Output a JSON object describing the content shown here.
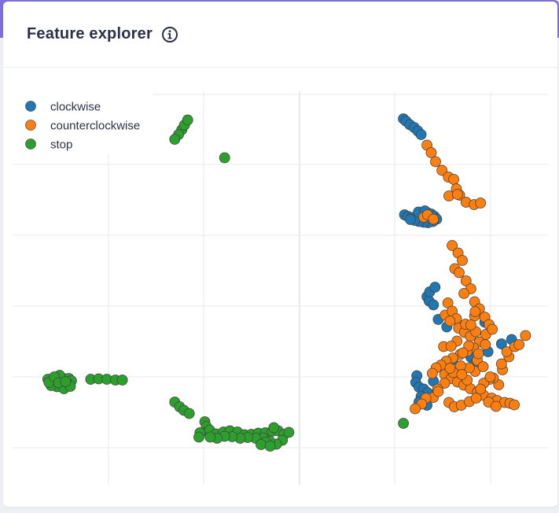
{
  "header": {
    "title": "Feature explorer",
    "info_icon": "info-circle-icon"
  },
  "colors": {
    "clockwise": "#1f77b4",
    "counterclockwise": "#ff7f0e",
    "stop": "#2ca02c",
    "title": "#2c2f48",
    "grid": "#e8e8ee"
  },
  "chart_data": {
    "type": "scatter",
    "title": "",
    "xlabel": "",
    "ylabel": "",
    "xlim": [
      0,
      100
    ],
    "ylim": [
      0,
      100
    ],
    "grid": true,
    "legend_position": "top-left",
    "legend": [
      "clockwise",
      "counterclockwise",
      "stop"
    ],
    "series": [
      {
        "name": "clockwise",
        "color": "#1f77b4",
        "points": [
          [
            73.0,
            93.0
          ],
          [
            73.5,
            92.4
          ],
          [
            74.2,
            91.5
          ],
          [
            75.0,
            90.8
          ],
          [
            75.7,
            89.9
          ],
          [
            76.3,
            89.0
          ],
          [
            73.2,
            68.6
          ],
          [
            73.8,
            68.2
          ],
          [
            74.5,
            67.9
          ],
          [
            75.3,
            68.0
          ],
          [
            76.0,
            68.5
          ],
          [
            76.8,
            68.9
          ],
          [
            77.5,
            69.1
          ],
          [
            78.2,
            68.8
          ],
          [
            78.8,
            68.2
          ],
          [
            79.2,
            67.5
          ],
          [
            78.5,
            66.9
          ],
          [
            77.6,
            66.6
          ],
          [
            76.8,
            66.7
          ],
          [
            75.9,
            66.9
          ],
          [
            75.1,
            67.2
          ],
          [
            74.3,
            67.4
          ],
          [
            75.8,
            69.3
          ],
          [
            77.0,
            69.6
          ],
          [
            77.4,
            47.8
          ],
          [
            77.8,
            46.7
          ],
          [
            78.6,
            45.7
          ],
          [
            77.9,
            49.0
          ],
          [
            78.9,
            50.2
          ],
          [
            75.5,
            27.7
          ],
          [
            75.3,
            26.0
          ],
          [
            75.9,
            24.8
          ],
          [
            76.8,
            24.3
          ],
          [
            77.5,
            23.4
          ],
          [
            76.3,
            22.4
          ],
          [
            75.9,
            21.0
          ],
          [
            77.4,
            20.2
          ],
          [
            78.6,
            26.3
          ],
          [
            88.8,
            33.8
          ],
          [
            93.2,
            36.9
          ],
          [
            91.3,
            35.8
          ],
          [
            85.6,
            32.4
          ],
          [
            86.4,
            30.7
          ],
          [
            82.2,
            31.7
          ],
          [
            81.1,
            40.1
          ],
          [
            79.5,
            42.0
          ],
          [
            88.2,
            41.3
          ]
        ]
      },
      {
        "name": "counterclockwise",
        "color": "#ff7f0e",
        "points": [
          [
            77.4,
            86.3
          ],
          [
            78.2,
            84.4
          ],
          [
            79.0,
            82.1
          ],
          [
            80.2,
            79.9
          ],
          [
            81.4,
            78.2
          ],
          [
            82.4,
            77.6
          ],
          [
            82.9,
            75.2
          ],
          [
            83.5,
            73.6
          ],
          [
            81.5,
            73.4
          ],
          [
            84.7,
            71.8
          ],
          [
            86.2,
            71.2
          ],
          [
            87.4,
            71.6
          ],
          [
            83.1,
            73.8
          ],
          [
            76.8,
            68.0
          ],
          [
            77.5,
            68.6
          ],
          [
            78.6,
            67.5
          ],
          [
            82.1,
            60.8
          ],
          [
            83.2,
            58.9
          ],
          [
            84.0,
            57.0
          ],
          [
            82.6,
            54.9
          ],
          [
            83.4,
            53.9
          ],
          [
            84.7,
            51.8
          ],
          [
            85.6,
            49.8
          ],
          [
            84.3,
            48.6
          ],
          [
            86.3,
            46.5
          ],
          [
            87.2,
            44.7
          ],
          [
            88.2,
            42.6
          ],
          [
            89.0,
            40.7
          ],
          [
            80.8,
            43.1
          ],
          [
            81.3,
            46.2
          ],
          [
            82.1,
            44.1
          ],
          [
            82.9,
            42.2
          ],
          [
            81.7,
            41.6
          ],
          [
            83.3,
            39.8
          ],
          [
            84.4,
            38.7
          ],
          [
            85.5,
            37.7
          ],
          [
            86.5,
            38.9
          ],
          [
            87.2,
            36.3
          ],
          [
            88.3,
            35.6
          ],
          [
            86.1,
            34.8
          ],
          [
            84.9,
            33.9
          ],
          [
            83.6,
            33.1
          ],
          [
            82.2,
            32.2
          ],
          [
            81.0,
            31.4
          ],
          [
            80.0,
            30.4
          ],
          [
            79.1,
            29.7
          ],
          [
            78.4,
            28.3
          ],
          [
            80.7,
            28.0
          ],
          [
            81.9,
            27.0
          ],
          [
            83.1,
            26.1
          ],
          [
            84.3,
            25.3
          ],
          [
            85.5,
            24.4
          ],
          [
            86.8,
            23.5
          ],
          [
            88.0,
            22.7
          ],
          [
            89.5,
            22.0
          ],
          [
            90.5,
            21.4
          ],
          [
            91.9,
            20.9
          ],
          [
            90.8,
            25.4
          ],
          [
            89.8,
            27.1
          ],
          [
            91.5,
            29.2
          ],
          [
            92.7,
            32.5
          ],
          [
            92.3,
            33.8
          ],
          [
            93.8,
            35.1
          ],
          [
            94.6,
            35.6
          ],
          [
            95.8,
            37.9
          ],
          [
            91.3,
            30.7
          ],
          [
            86.4,
            28.8
          ],
          [
            85.3,
            29.7
          ],
          [
            83.7,
            30.2
          ],
          [
            82.3,
            28.5
          ],
          [
            80.7,
            25.8
          ],
          [
            79.4,
            24.3
          ],
          [
            78.6,
            22.2
          ],
          [
            77.2,
            22.0
          ],
          [
            76.4,
            20.5
          ],
          [
            75.2,
            19.3
          ],
          [
            81.5,
            20.9
          ],
          [
            82.5,
            19.8
          ],
          [
            83.8,
            20.2
          ],
          [
            85.3,
            21.1
          ],
          [
            86.6,
            22.0
          ],
          [
            88.9,
            21.0
          ],
          [
            90.3,
            19.9
          ],
          [
            92.9,
            20.7
          ],
          [
            93.7,
            20.3
          ],
          [
            79.5,
            23.7
          ],
          [
            83.0,
            36.5
          ],
          [
            84.6,
            40.8
          ],
          [
            86.3,
            42.9
          ],
          [
            85.6,
            40.6
          ],
          [
            85.2,
            35.3
          ],
          [
            86.8,
            31.6
          ],
          [
            87.9,
            30.0
          ],
          [
            89.1,
            26.8
          ],
          [
            88.0,
            25.8
          ],
          [
            87.4,
            24.3
          ],
          [
            84.9,
            26.6
          ],
          [
            83.9,
            28.0
          ],
          [
            81.7,
            29.6
          ],
          [
            80.5,
            35.1
          ],
          [
            81.9,
            35.2
          ],
          [
            84.1,
            33.5
          ],
          [
            87.0,
            33.3
          ],
          [
            88.4,
            38.2
          ],
          [
            89.6,
            39.5
          ],
          [
            86.4,
            44.0
          ],
          [
            89.2,
            27.4
          ]
        ]
      },
      {
        "name": "stop",
        "color": "#2ca02c",
        "points": [
          [
            31.6,
            90.2
          ],
          [
            32.1,
            91.4
          ],
          [
            32.7,
            92.7
          ],
          [
            31.0,
            89.0
          ],
          [
            30.3,
            87.8
          ],
          [
            39.6,
            83.1
          ],
          [
            6.6,
            26.8
          ],
          [
            7.6,
            26.5
          ],
          [
            8.6,
            26.7
          ],
          [
            9.7,
            26.9
          ],
          [
            10.5,
            27.0
          ],
          [
            11.0,
            26.4
          ],
          [
            10.2,
            25.8
          ],
          [
            9.3,
            25.2
          ],
          [
            8.3,
            24.9
          ],
          [
            7.2,
            25.2
          ],
          [
            6.8,
            26.0
          ],
          [
            8.8,
            27.8
          ],
          [
            9.6,
            24.4
          ],
          [
            10.8,
            25.0
          ],
          [
            7.8,
            27.4
          ],
          [
            8.6,
            25.9
          ],
          [
            9.9,
            26.2
          ],
          [
            14.6,
            26.8
          ],
          [
            16.1,
            26.9
          ],
          [
            17.6,
            26.8
          ],
          [
            19.2,
            26.6
          ],
          [
            20.5,
            26.6
          ],
          [
            30.3,
            21.0
          ],
          [
            31.2,
            19.8
          ],
          [
            32.0,
            18.9
          ],
          [
            33.0,
            18.1
          ],
          [
            35.9,
            16.0
          ],
          [
            36.2,
            14.8
          ],
          [
            36.4,
            13.5
          ],
          [
            35.0,
            13.2
          ],
          [
            34.8,
            12.1
          ],
          [
            36.8,
            13.9
          ],
          [
            38.0,
            12.9
          ],
          [
            39.4,
            13.4
          ],
          [
            40.6,
            13.7
          ],
          [
            42.0,
            13.4
          ],
          [
            43.3,
            12.7
          ],
          [
            44.6,
            12.8
          ],
          [
            45.9,
            13.1
          ],
          [
            47.2,
            13.2
          ],
          [
            48.5,
            13.6
          ],
          [
            49.6,
            13.7
          ],
          [
            50.7,
            12.8
          ],
          [
            51.6,
            13.3
          ],
          [
            50.4,
            11.3
          ],
          [
            49.3,
            10.3
          ],
          [
            48.0,
            11.1
          ],
          [
            46.8,
            11.9
          ],
          [
            45.4,
            11.8
          ],
          [
            43.9,
            12.0
          ],
          [
            42.5,
            11.8
          ],
          [
            41.0,
            12.2
          ],
          [
            39.6,
            12.3
          ],
          [
            38.2,
            11.8
          ],
          [
            36.9,
            12.1
          ],
          [
            48.8,
            14.5
          ],
          [
            47.3,
            10.8
          ],
          [
            46.4,
            10.2
          ],
          [
            48.1,
            9.8
          ],
          [
            73.0,
            15.6
          ]
        ]
      }
    ]
  }
}
